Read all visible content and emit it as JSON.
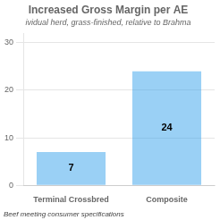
{
  "chart_data": {
    "type": "bar",
    "title": "Increased Gross Margin per AE",
    "subtitle": "ividual herd, grass-finished, relative to Brahma",
    "annotations": [
      "Beef meeting consumer specifications"
    ],
    "categories": [
      "Terminal Crossbred",
      "Composite"
    ],
    "values": [
      7,
      24
    ],
    "ylim": [
      0,
      32
    ],
    "yticks": [
      0,
      10,
      20,
      30
    ],
    "grid": true,
    "data_labels": true
  }
}
